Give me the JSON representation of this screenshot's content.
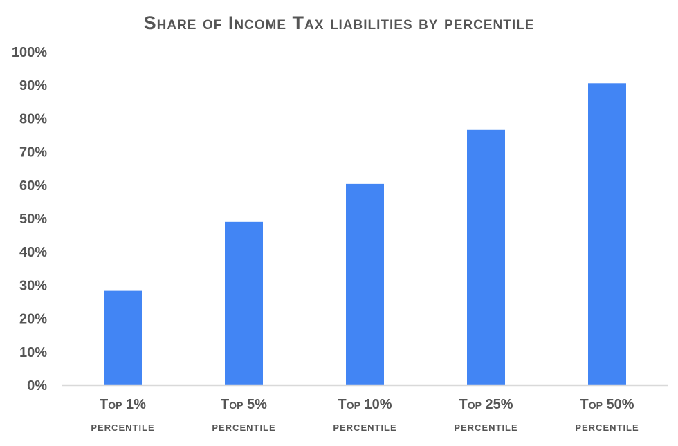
{
  "chart_data": {
    "type": "bar",
    "title": "Share of Income Tax liabilities by percentile",
    "categories": [
      "Top 1%",
      "Top 5%",
      "Top 10%",
      "Top 25%",
      "Top 50%"
    ],
    "category_sublabel": "percentile",
    "values": [
      28.3,
      49.0,
      60.4,
      76.6,
      90.6
    ],
    "ylim": [
      0,
      100
    ],
    "yticks": [
      0,
      10,
      20,
      30,
      40,
      50,
      60,
      70,
      80,
      90,
      100
    ],
    "ytick_format": "percent",
    "xlabel": "",
    "ylabel": "",
    "grid": false,
    "bar_color": "#4285F4",
    "axis_color": "#d9d9d9"
  }
}
